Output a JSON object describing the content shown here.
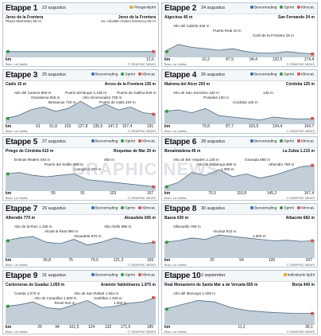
{
  "legend": {
    "sprint": "Sprint",
    "climb": "Klimcat.",
    "bonus": "Bevoorrading",
    "itt": "Ploegentijdrit",
    "iitt": "Individuele tijdrit"
  },
  "footer": {
    "source": "Bron: La Vuelta",
    "credit": "© GRAPHIC NEWS"
  },
  "watermark": "GRAPHIC NEWS",
  "colors": {
    "sprint": "#2e9e3c",
    "climb": "#d9534f",
    "bonus": "#2f6db5",
    "profile": "#8fa6b8",
    "profileLine": "#4d6a80"
  },
  "stages": [
    {
      "title": "Etappe 1",
      "date": "23 augustus",
      "legend": [
        "ttt"
      ],
      "start": "Jerez de la Frontera",
      "finish": "Jerez de la Frontera",
      "sub": "Plaza  Mamelon 55 m",
      "sub2": "Av. Alcalde Alvaro Domecq 55 m",
      "kmMarks": [],
      "end": "12,6"
    },
    {
      "title": "Etappe 2",
      "date": "24 augustus",
      "legend": [
        "bonus",
        "sprint",
        "climb"
      ],
      "start": "Algeciras 40 m",
      "finish": "San Fernando 24 m",
      "sub": "",
      "points": [
        "Alto del Cabrito 340 m",
        "Puerto Real 10 m",
        "Conil de la Frontera 18 m"
      ],
      "kmMarks": [
        "10,2",
        "87,9",
        "94,4",
        "132,5"
      ],
      "end": "174,4"
    },
    {
      "title": "Etappe 3",
      "date": "25 augustus",
      "legend": [
        "bonus",
        "sprint",
        "climb"
      ],
      "start": "Cádiz 15 m",
      "finish": "Arcos de la Frontera 135 m",
      "sub": "",
      "points": [
        "Alto del Camino 900 m",
        "Grazalema 825 m",
        "Benaocaz 740 m",
        "Puerto del Boyar 1.105 m",
        "Alto Alcornocales 705 m",
        "Puerto de Galis 420 m",
        "Puerto de Gallina 840 m"
      ],
      "kmMarks": [
        "61",
        "91,8",
        "103",
        "127,8",
        "135,6",
        "147,2",
        "157,4"
      ],
      "end": "191"
    },
    {
      "title": "Etappe 4",
      "date": "26 augustus",
      "legend": [
        "bonus",
        "sprint",
        "climb"
      ],
      "start": "Mairena del Alcor 250 m",
      "finish": "Córdoba 125 m",
      "sub": "",
      "points": [
        "Alto de San Jeronimo 440 m",
        "Posadas 100 m",
        "Cordoba 125 m",
        "135 m"
      ],
      "kmMarks": [
        "79,8",
        "87,7",
        "103,5",
        "134,4"
      ],
      "end": "164,7"
    },
    {
      "title": "Etappe 5",
      "date": "27 augustus",
      "legend": [
        "bonus",
        "sprint",
        "climb"
      ],
      "start": "Priego de Córdoba 610 m",
      "finish": "Roquetas de Mar 20 m",
      "sub": "",
      "points": [
        "Enrinas Reales 445 m",
        "Puerto del Sotillo 885 m",
        "Campillos 470 m",
        "460 m"
      ],
      "kmMarks": [
        "55",
        "91",
        "103"
      ],
      "end": "167"
    },
    {
      "title": "Etappe 6",
      "date": "28 augustus",
      "legend": [
        "bonus",
        "sprint",
        "climb"
      ],
      "start": "Benalmádena 45 m",
      "finish": "La Zubia 1.215 m",
      "sub": "",
      "points": [
        "Alto de Ber mejales 1.130 m",
        "Alto de Zafarraya 890 m",
        "1.000 m",
        "Granada 685 m",
        "Alhendín 780 m"
      ],
      "kmMarks": [
        "76,5",
        "116,8",
        "145,2"
      ],
      "end": "167,4"
    },
    {
      "title": "Etappe 7",
      "date": "29 augustus",
      "legend": [
        "bonus",
        "sprint",
        "climb"
      ],
      "start": "Alhendín 775 m",
      "finish": "Alcaudete 605 m",
      "sub": "",
      "points": [
        "Alto de la Ruiz 1.190 m",
        "Alcalá la Real 890 m",
        "Alcaudete 670 m",
        "Alto Ahillo 995 m"
      ],
      "kmMarks": [
        "39,8",
        "76",
        "79,5",
        "121,3"
      ],
      "end": "169"
    },
    {
      "title": "Etappe 8",
      "date": "30 augustus",
      "legend": [
        "bonus",
        "sprint",
        "climb"
      ],
      "start": "Baeza 630 m",
      "finish": "Albacete 682 m",
      "sub": "",
      "points": [
        "Villacarillo 780 m",
        "Alcaraz 910 m",
        "1.000 m"
      ],
      "kmMarks": [
        "20",
        "54",
        "100"
      ],
      "end": "207"
    },
    {
      "title": "Etappe 9",
      "date": "31 augustus",
      "legend": [
        "bonus",
        "sprint",
        "climb"
      ],
      "start": "Carboneras de Guadaz 1.050 m",
      "finish": "Aramón Valdelinares 1.975 m",
      "sub": "",
      "points": [
        "Cuesta 1.070 m",
        "Alto de Campillos 1.600 m",
        "Teruel 910 m",
        "Alto de San Rafael 1.554 m",
        "Cedrillas 1.340 m",
        "1.000 m"
      ],
      "kmMarks": [
        "25",
        "94",
        "101,5",
        "124",
        "132",
        "171,5"
      ],
      "end": "185"
    },
    {
      "title": "Etappe 10",
      "date": "2 september",
      "legend": [
        "iitt"
      ],
      "start": "Real Monasterio de Santa Mar a de Veruela 655 m",
      "finish": "Borja 440 m",
      "sub": "",
      "points": [
        "Alto del Moncayo 1.000 m"
      ],
      "kmMarks": [
        "11,2"
      ],
      "end": "36,1"
    }
  ]
}
